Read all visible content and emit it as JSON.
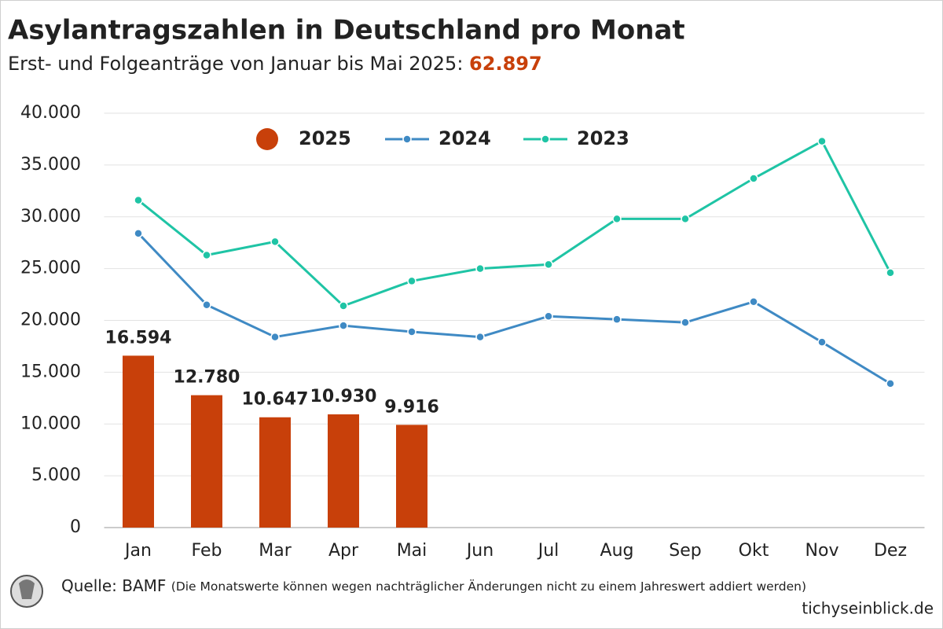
{
  "chart_data": {
    "type": "bar",
    "title": "Asylantragszahlen in Deutschland pro Monat",
    "subtitle": "Erst- und Folgeanträge von Januar bis Mai 2025:",
    "subtitle_total": "62.897",
    "categories": [
      "Jan",
      "Feb",
      "Mar",
      "Apr",
      "Mai",
      "Jun",
      "Jul",
      "Aug",
      "Sep",
      "Okt",
      "Nov",
      "Dez"
    ],
    "series": [
      {
        "name": "2025",
        "type": "bar",
        "color": "#c8400a",
        "values": [
          16594,
          12780,
          10647,
          10930,
          9916,
          null,
          null,
          null,
          null,
          null,
          null,
          null
        ],
        "value_labels": [
          "16.594",
          "12.780",
          "10.647",
          "10.930",
          "9.916",
          null,
          null,
          null,
          null,
          null,
          null,
          null
        ]
      },
      {
        "name": "2024",
        "type": "line",
        "color": "#3f8ac4",
        "values": [
          28400,
          21500,
          18400,
          19500,
          18900,
          18400,
          20400,
          20100,
          19800,
          21800,
          17900,
          13900
        ]
      },
      {
        "name": "2023",
        "type": "line",
        "color": "#1fc4a5",
        "values": [
          31600,
          26300,
          27600,
          21400,
          23800,
          25000,
          25400,
          29800,
          29800,
          33700,
          37300,
          24600
        ]
      }
    ],
    "ylim": [
      0,
      40000
    ],
    "yticks": [
      0,
      {
        "value": 5000,
        "label": "5.000"
      },
      {
        "value": 10000,
        "label": "10.000"
      },
      {
        "value": 15000,
        "label": "15.000"
      },
      {
        "value": 20000,
        "label": "20.000"
      },
      {
        "value": 25000,
        "label": "25.000"
      },
      {
        "value": 30000,
        "label": "30.000"
      },
      {
        "value": 35000,
        "label": "35.000"
      },
      {
        "value": 40000,
        "label": "40.000"
      }
    ],
    "grid": true,
    "legend": "top",
    "source": "Quelle: BAMF",
    "note": "(Die Monatswerte können wegen nachträglicher Änderungen nicht zu einem Jahreswert addiert werden)",
    "publisher": "tichyseinblick.de"
  }
}
